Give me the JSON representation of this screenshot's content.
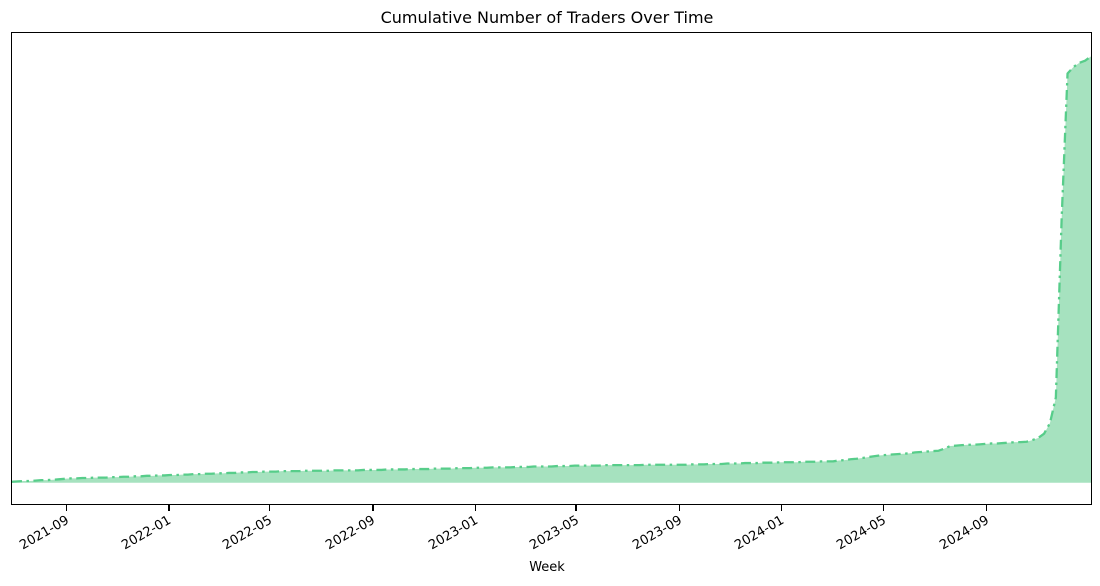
{
  "chart_data": {
    "type": "area",
    "title": "Cumulative Number of Traders Over Time",
    "xlabel": "Week",
    "ylabel": "",
    "grid": false,
    "legend": false,
    "line_style": "dashdot",
    "x_start": "2021-06-27",
    "x_step_days": 7,
    "x_end": "2025-01-05",
    "x_tick_format": "YYYY-MM",
    "x_ticks": [
      {
        "label": "2021-09",
        "date": "2021-09-01"
      },
      {
        "label": "2022-01",
        "date": "2022-01-01"
      },
      {
        "label": "2022-05",
        "date": "2022-05-01"
      },
      {
        "label": "2022-09",
        "date": "2022-09-01"
      },
      {
        "label": "2023-01",
        "date": "2023-01-01"
      },
      {
        "label": "2023-05",
        "date": "2023-05-01"
      },
      {
        "label": "2023-09",
        "date": "2023-09-01"
      },
      {
        "label": "2024-01",
        "date": "2024-01-01"
      },
      {
        "label": "2024-05",
        "date": "2024-05-01"
      },
      {
        "label": "2024-09",
        "date": "2024-09-01"
      }
    ],
    "y_unit": "relative cumulative traders (y-axis has no tick labels; peak normalized to 1.0)",
    "ylim": [
      -0.05,
      1.055
    ],
    "colors": {
      "line": "#57cd8a",
      "fill": "#a6e2bf",
      "axis": "#000000",
      "text": "#000000",
      "background": "#ffffff"
    },
    "values": [
      0.002,
      0.003,
      0.004,
      0.004,
      0.005,
      0.006,
      0.006,
      0.007,
      0.008,
      0.009,
      0.01,
      0.01,
      0.011,
      0.011,
      0.012,
      0.012,
      0.012,
      0.013,
      0.013,
      0.014,
      0.014,
      0.015,
      0.015,
      0.016,
      0.016,
      0.017,
      0.017,
      0.018,
      0.018,
      0.019,
      0.019,
      0.02,
      0.02,
      0.021,
      0.021,
      0.022,
      0.022,
      0.023,
      0.023,
      0.024,
      0.024,
      0.025,
      0.025,
      0.026,
      0.026,
      0.026,
      0.027,
      0.027,
      0.027,
      0.027,
      0.028,
      0.028,
      0.028,
      0.028,
      0.028,
      0.029,
      0.029,
      0.029,
      0.029,
      0.029,
      0.03,
      0.03,
      0.03,
      0.03,
      0.031,
      0.031,
      0.031,
      0.031,
      0.032,
      0.032,
      0.032,
      0.032,
      0.033,
      0.033,
      0.033,
      0.033,
      0.034,
      0.034,
      0.034,
      0.035,
      0.035,
      0.035,
      0.036,
      0.036,
      0.036,
      0.036,
      0.037,
      0.037,
      0.037,
      0.038,
      0.038,
      0.038,
      0.038,
      0.039,
      0.039,
      0.039,
      0.04,
      0.04,
      0.04,
      0.04,
      0.04,
      0.041,
      0.041,
      0.041,
      0.041,
      0.041,
      0.041,
      0.041,
      0.042,
      0.042,
      0.042,
      0.042,
      0.042,
      0.042,
      0.042,
      0.042,
      0.043,
      0.043,
      0.043,
      0.044,
      0.044,
      0.044,
      0.045,
      0.045,
      0.045,
      0.046,
      0.046,
      0.046,
      0.047,
      0.047,
      0.047,
      0.048,
      0.048,
      0.048,
      0.048,
      0.049,
      0.049,
      0.049,
      0.05,
      0.05,
      0.05,
      0.052,
      0.053,
      0.055,
      0.056,
      0.058,
      0.06,
      0.062,
      0.064,
      0.065,
      0.066,
      0.067,
      0.068,
      0.069,
      0.071,
      0.072,
      0.073,
      0.074,
      0.075,
      0.08,
      0.086,
      0.087,
      0.088,
      0.089,
      0.089,
      0.09,
      0.091,
      0.092,
      0.092,
      0.093,
      0.094,
      0.095,
      0.095,
      0.096,
      0.1,
      0.105,
      0.115,
      0.14,
      0.2,
      0.62,
      0.96,
      0.975,
      0.985,
      0.99,
      1.0
    ]
  }
}
